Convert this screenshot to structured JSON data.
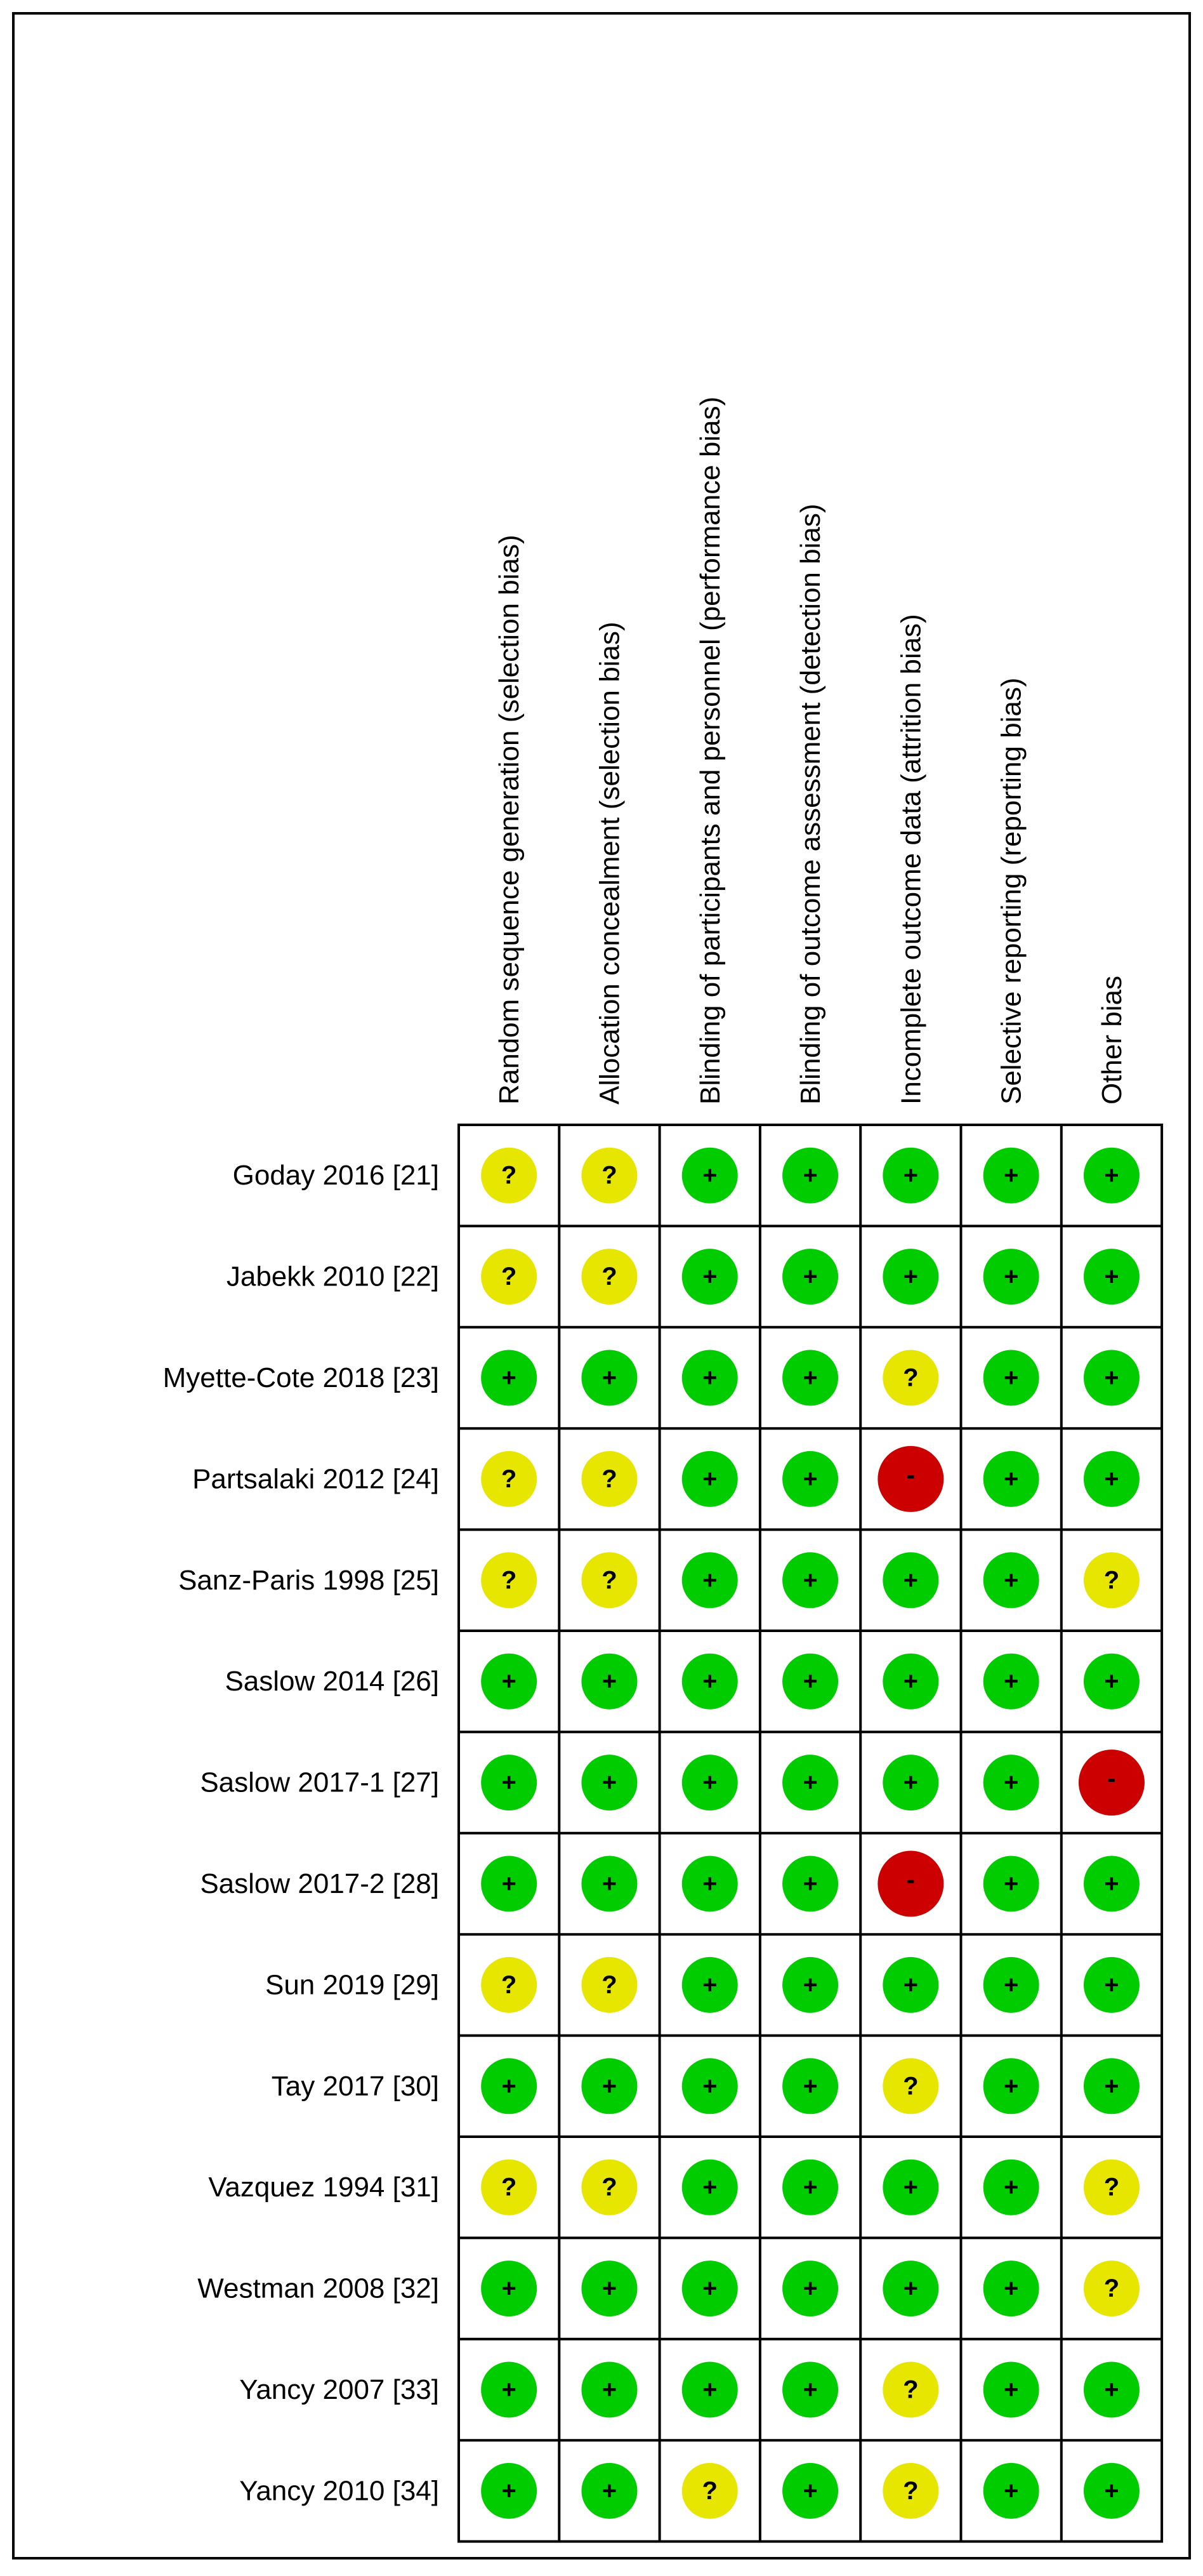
{
  "columns": [
    "Random sequence generation (selection bias)",
    "Allocation concealment (selection bias)",
    "Blinding of participants and personnel (performance bias)",
    "Blinding of outcome assessment (detection bias)",
    "Incomplete outcome data (attrition bias)",
    "Selective reporting (reporting bias)",
    "Other bias"
  ],
  "rows": [
    {
      "study": "Goday 2016 [21]",
      "ratings": [
        "?",
        "?",
        "+",
        "+",
        "+",
        "+",
        "+"
      ]
    },
    {
      "study": "Jabekk 2010 [22]",
      "ratings": [
        "?",
        "?",
        "+",
        "+",
        "+",
        "+",
        "+"
      ]
    },
    {
      "study": "Myette-Cote 2018 [23]",
      "ratings": [
        "+",
        "+",
        "+",
        "+",
        "?",
        "+",
        "+"
      ]
    },
    {
      "study": "Partsalaki 2012 [24]",
      "ratings": [
        "?",
        "?",
        "+",
        "+",
        "-",
        "+",
        "+"
      ]
    },
    {
      "study": "Sanz-Paris 1998 [25]",
      "ratings": [
        "?",
        "?",
        "+",
        "+",
        "+",
        "+",
        "?"
      ]
    },
    {
      "study": "Saslow 2014 [26]",
      "ratings": [
        "+",
        "+",
        "+",
        "+",
        "+",
        "+",
        "+"
      ]
    },
    {
      "study": "Saslow 2017-1 [27]",
      "ratings": [
        "+",
        "+",
        "+",
        "+",
        "+",
        "+",
        "-"
      ]
    },
    {
      "study": "Saslow 2017-2 [28]",
      "ratings": [
        "+",
        "+",
        "+",
        "+",
        "-",
        "+",
        "+"
      ]
    },
    {
      "study": "Sun 2019 [29]",
      "ratings": [
        "?",
        "?",
        "+",
        "+",
        "+",
        "+",
        "+"
      ]
    },
    {
      "study": "Tay 2017 [30]",
      "ratings": [
        "+",
        "+",
        "+",
        "+",
        "?",
        "+",
        "+"
      ]
    },
    {
      "study": "Vazquez 1994 [31]",
      "ratings": [
        "?",
        "?",
        "+",
        "+",
        "+",
        "+",
        "?"
      ]
    },
    {
      "study": "Westman 2008 [32]",
      "ratings": [
        "+",
        "+",
        "+",
        "+",
        "+",
        "+",
        "?"
      ]
    },
    {
      "study": "Yancy 2007 [33]",
      "ratings": [
        "+",
        "+",
        "+",
        "+",
        "?",
        "+",
        "+"
      ]
    },
    {
      "study": "Yancy 2010 [34]",
      "ratings": [
        "+",
        "+",
        "?",
        "+",
        "?",
        "+",
        "+"
      ]
    }
  ],
  "colors": {
    "+": "#00cc00",
    "?": "#e6e600",
    "-": "#cc0000"
  }
}
